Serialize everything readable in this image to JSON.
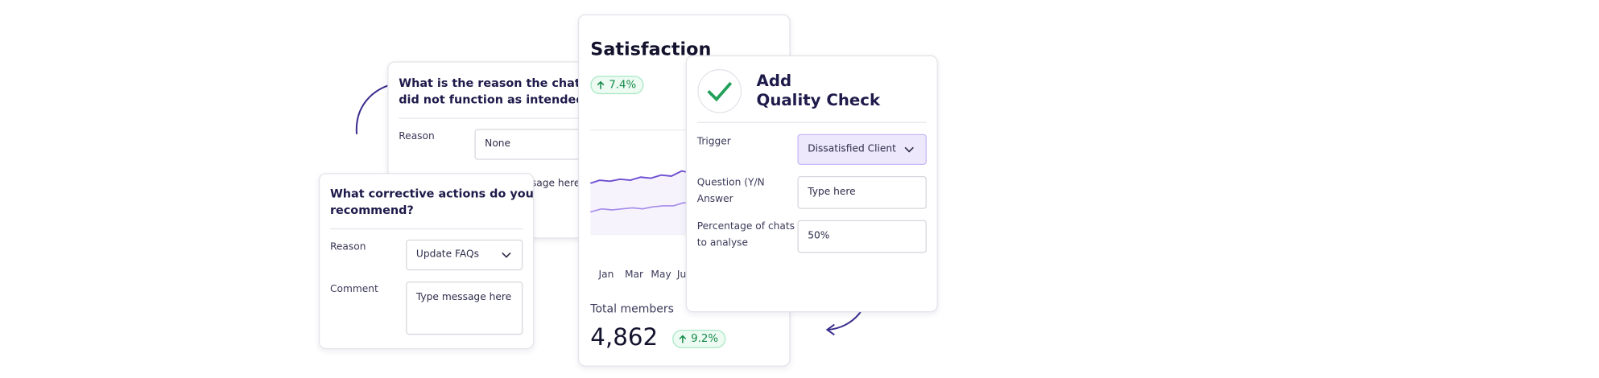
{
  "reason_card": {
    "question": [
      "What is the reason the chatbot",
      "did not function as intended?"
    ],
    "reason_label": "Reason",
    "reason_value": "None",
    "comment_placeholder": "Type message here"
  },
  "actions_card": {
    "question": [
      "What corrective actions do you",
      "recommend?"
    ],
    "reason_label": "Reason",
    "reason_value": "Update FAQs",
    "comment_label": "Comment",
    "comment_placeholder": "Type message here"
  },
  "satisfaction_card": {
    "title": "Satisfaction",
    "change": "7.4%",
    "months": [
      "Jan",
      "Mar",
      "May",
      "Jun"
    ],
    "total_label": "Total members",
    "total_value": "4,862",
    "total_change": "9.2%"
  },
  "quality_card": {
    "title": [
      "Add",
      "Quality Check"
    ],
    "trigger_label": "Trigger",
    "trigger_value": "Dissatisfied Client",
    "question_label": [
      "Question (Y/N",
      "Answer"
    ],
    "question_placeholder": "Type here",
    "percentage_label": [
      "Percentage of chats",
      "to analyse"
    ],
    "percentage_value": "50%"
  }
}
